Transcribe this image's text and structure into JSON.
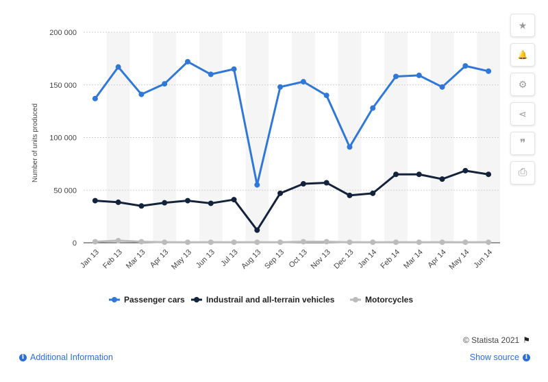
{
  "chart_data": {
    "type": "line",
    "title": "",
    "xlabel": "",
    "ylabel": "Number of units produced",
    "ylim": [
      0,
      200000
    ],
    "yticks": [
      0,
      50000,
      100000,
      150000,
      200000
    ],
    "ytick_labels": [
      "0",
      "50 000",
      "100 000",
      "150 000",
      "200 000"
    ],
    "grid": "horizontal dotted",
    "legend_position": "bottom",
    "categories": [
      "Jan 13",
      "Feb 13",
      "Mar 13",
      "Apr 13",
      "May 13",
      "Jun 13",
      "Jul 13",
      "Aug 13",
      "Sep 13",
      "Oct 13",
      "Nov 13",
      "Dec 13",
      "Jan 14",
      "Feb 14",
      "Mar 14",
      "Apr 14",
      "May 14",
      "Jun 14"
    ],
    "series": [
      {
        "name": "Passenger cars",
        "color": "#2f78d8",
        "values": [
          137000,
          167000,
          141000,
          151000,
          172000,
          160000,
          165000,
          55000,
          148000,
          153000,
          140000,
          91000,
          128000,
          158000,
          159000,
          148000,
          168000,
          163000
        ]
      },
      {
        "name": "Industrail and all-terrain vehicles",
        "color": "#13233b",
        "values": [
          40000,
          38500,
          35000,
          38000,
          40000,
          37500,
          41000,
          12000,
          47000,
          56000,
          57000,
          45000,
          47000,
          65000,
          65000,
          60500,
          68500,
          65000
        ]
      },
      {
        "name": "Motorcycles",
        "color": "#bbbbbb",
        "values": [
          1000,
          2000,
          1000,
          500,
          500,
          500,
          500,
          500,
          500,
          1000,
          1000,
          500,
          500,
          500,
          500,
          500,
          500,
          500
        ]
      }
    ]
  },
  "toolbar": {
    "items": [
      {
        "name": "star-icon",
        "glyph": "★"
      },
      {
        "name": "bell-icon",
        "glyph": "🔔"
      },
      {
        "name": "gear-icon",
        "glyph": "⚙"
      },
      {
        "name": "share-icon",
        "glyph": "⋖"
      },
      {
        "name": "quote-icon",
        "glyph": "❞"
      },
      {
        "name": "print-icon",
        "glyph": "⎙"
      }
    ]
  },
  "footer": {
    "credit": "© Statista 2021",
    "additional_info": "Additional Information",
    "show_source": "Show source",
    "info_glyph": "i"
  }
}
